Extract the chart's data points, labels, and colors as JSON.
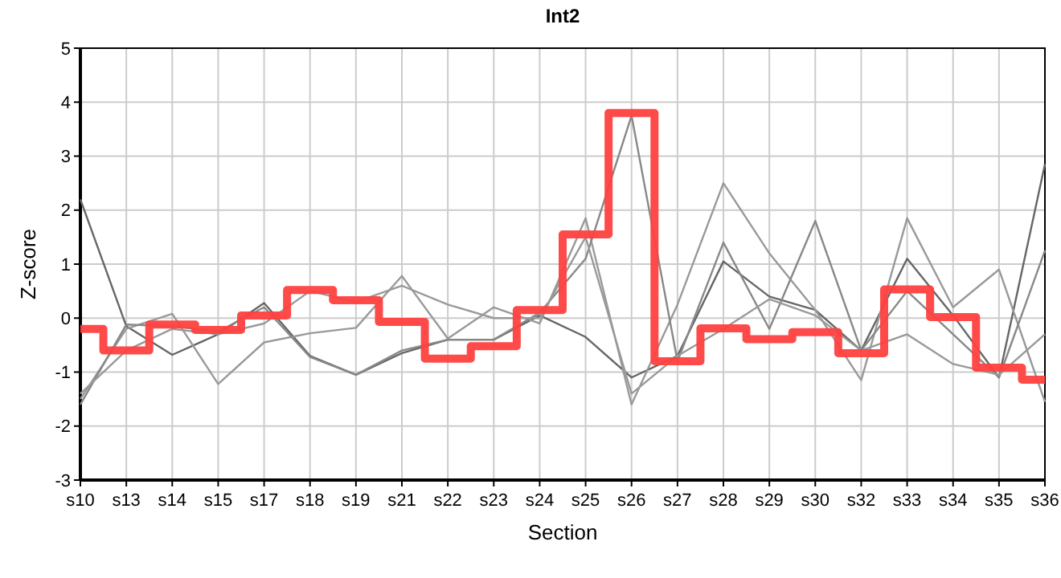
{
  "chart_data": {
    "type": "line",
    "title": "Int2",
    "xlabel": "Section",
    "ylabel": "Z-score",
    "categories": [
      "s10",
      "s13",
      "s14",
      "s15",
      "s17",
      "s18",
      "s19",
      "s21",
      "s22",
      "s23",
      "s24",
      "s25",
      "s26",
      "s27",
      "s28",
      "s29",
      "s30",
      "s32",
      "s33",
      "s34",
      "s35",
      "s36"
    ],
    "series": [
      {
        "color": "#666666",
        "values": [
          2.2,
          -0.15,
          -0.68,
          -0.3,
          0.28,
          -0.7,
          -1.05,
          -0.65,
          -0.4,
          -0.4,
          0.05,
          -0.35,
          -1.1,
          -0.7,
          1.05,
          0.4,
          0.15,
          -0.6,
          1.1,
          0.05,
          -1.1,
          2.85
        ]
      },
      {
        "color": "#999999",
        "values": [
          -1.5,
          -0.2,
          0.08,
          -1.22,
          -0.45,
          -0.28,
          -0.18,
          0.78,
          -0.38,
          0.2,
          -0.1,
          1.85,
          -1.6,
          0.25,
          2.5,
          1.2,
          0.15,
          -1.15,
          1.85,
          0.2,
          0.9,
          -1.55
        ]
      },
      {
        "color": "#888888",
        "values": [
          -1.6,
          -0.12,
          -0.15,
          -0.25,
          0.2,
          -0.72,
          -1.05,
          -0.6,
          -0.4,
          -0.4,
          0.1,
          1.1,
          3.75,
          -0.8,
          1.4,
          -0.2,
          1.8,
          -0.6,
          0.5,
          -0.3,
          -1.1,
          1.25
        ]
      },
      {
        "color": "#999999",
        "values": [
          -1.4,
          -0.6,
          -0.2,
          -0.3,
          -0.1,
          0.5,
          0.3,
          0.6,
          0.25,
          0.0,
          0.0,
          1.5,
          -1.4,
          -0.7,
          -0.2,
          0.35,
          0.05,
          -0.6,
          -0.3,
          -0.85,
          -1.05,
          -0.3
        ]
      },
      {
        "type": "step",
        "color": "#ff4040",
        "values": [
          -0.2,
          -0.6,
          -0.12,
          -0.22,
          0.05,
          0.52,
          0.33,
          -0.07,
          -0.75,
          -0.52,
          0.15,
          1.55,
          3.8,
          -0.8,
          -0.19,
          -0.39,
          -0.26,
          -0.65,
          0.53,
          0.02,
          -0.92,
          -1.14
        ]
      }
    ],
    "ylim": [
      -3,
      5
    ],
    "yticks": [
      -3,
      -2,
      -1,
      0,
      1,
      2,
      3,
      4,
      5
    ],
    "grid": true,
    "marker": "none",
    "line_style": "solid"
  }
}
